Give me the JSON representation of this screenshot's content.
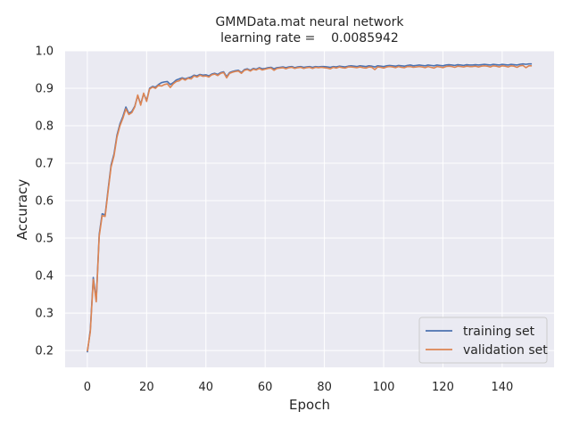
{
  "chart_data": {
    "type": "line",
    "title": "GMMData.mat neural network",
    "subtitle": "learning rate =    0.0085942",
    "xlabel": "Epoch",
    "ylabel": "Accuracy",
    "xlim": [
      -7.5,
      157.5
    ],
    "ylim": [
      0.155,
      1.0
    ],
    "xticks": [
      0,
      20,
      40,
      60,
      80,
      100,
      120,
      140
    ],
    "yticks": [
      0.2,
      0.3,
      0.4,
      0.5,
      0.6,
      0.7,
      0.8,
      0.9,
      1.0
    ],
    "ytick_labels": [
      "0.2",
      "0.3",
      "0.4",
      "0.5",
      "0.6",
      "0.7",
      "0.8",
      "0.9",
      "1.0"
    ],
    "grid": true,
    "legend_position": "lower-right",
    "series": [
      {
        "name": "training set",
        "color": "#4c72b0",
        "points": [
          [
            0,
            0.195
          ],
          [
            1,
            0.255
          ],
          [
            2,
            0.395
          ],
          [
            3,
            0.335
          ],
          [
            4,
            0.51
          ],
          [
            5,
            0.565
          ],
          [
            6,
            0.562
          ],
          [
            7,
            0.63
          ],
          [
            8,
            0.695
          ],
          [
            9,
            0.725
          ],
          [
            10,
            0.775
          ],
          [
            11,
            0.805
          ],
          [
            12,
            0.825
          ],
          [
            13,
            0.85
          ],
          [
            14,
            0.833
          ],
          [
            15,
            0.838
          ],
          [
            16,
            0.852
          ],
          [
            17,
            0.88
          ],
          [
            18,
            0.858
          ],
          [
            19,
            0.885
          ],
          [
            20,
            0.868
          ],
          [
            21,
            0.9
          ],
          [
            22,
            0.905
          ],
          [
            23,
            0.903
          ],
          [
            24,
            0.91
          ],
          [
            25,
            0.915
          ],
          [
            26,
            0.917
          ],
          [
            27,
            0.918
          ],
          [
            28,
            0.91
          ],
          [
            29,
            0.915
          ],
          [
            30,
            0.922
          ],
          [
            31,
            0.925
          ],
          [
            32,
            0.928
          ],
          [
            33,
            0.925
          ],
          [
            34,
            0.928
          ],
          [
            35,
            0.93
          ],
          [
            36,
            0.935
          ],
          [
            37,
            0.933
          ],
          [
            38,
            0.937
          ],
          [
            39,
            0.935
          ],
          [
            40,
            0.936
          ],
          [
            41,
            0.933
          ],
          [
            42,
            0.938
          ],
          [
            43,
            0.94
          ],
          [
            44,
            0.937
          ],
          [
            45,
            0.942
          ],
          [
            46,
            0.944
          ],
          [
            47,
            0.931
          ],
          [
            48,
            0.942
          ],
          [
            49,
            0.945
          ],
          [
            50,
            0.947
          ],
          [
            51,
            0.948
          ],
          [
            52,
            0.942
          ],
          [
            53,
            0.95
          ],
          [
            54,
            0.952
          ],
          [
            55,
            0.948
          ],
          [
            56,
            0.953
          ],
          [
            57,
            0.951
          ],
          [
            58,
            0.955
          ],
          [
            59,
            0.952
          ],
          [
            60,
            0.953
          ],
          [
            61,
            0.955
          ],
          [
            62,
            0.956
          ],
          [
            63,
            0.952
          ],
          [
            64,
            0.955
          ],
          [
            65,
            0.956
          ],
          [
            66,
            0.957
          ],
          [
            67,
            0.955
          ],
          [
            68,
            0.957
          ],
          [
            69,
            0.958
          ],
          [
            70,
            0.955
          ],
          [
            71,
            0.957
          ],
          [
            72,
            0.958
          ],
          [
            73,
            0.956
          ],
          [
            74,
            0.957
          ],
          [
            75,
            0.958
          ],
          [
            76,
            0.956
          ],
          [
            77,
            0.958
          ],
          [
            78,
            0.957
          ],
          [
            79,
            0.958
          ],
          [
            80,
            0.958
          ],
          [
            81,
            0.957
          ],
          [
            82,
            0.956
          ],
          [
            83,
            0.958
          ],
          [
            84,
            0.957
          ],
          [
            85,
            0.959
          ],
          [
            86,
            0.958
          ],
          [
            87,
            0.957
          ],
          [
            88,
            0.959
          ],
          [
            89,
            0.96
          ],
          [
            90,
            0.959
          ],
          [
            91,
            0.958
          ],
          [
            92,
            0.96
          ],
          [
            93,
            0.959
          ],
          [
            94,
            0.958
          ],
          [
            95,
            0.96
          ],
          [
            96,
            0.959
          ],
          [
            97,
            0.957
          ],
          [
            98,
            0.96
          ],
          [
            99,
            0.959
          ],
          [
            100,
            0.958
          ],
          [
            101,
            0.96
          ],
          [
            102,
            0.961
          ],
          [
            103,
            0.96
          ],
          [
            104,
            0.959
          ],
          [
            105,
            0.961
          ],
          [
            106,
            0.96
          ],
          [
            107,
            0.959
          ],
          [
            108,
            0.961
          ],
          [
            109,
            0.962
          ],
          [
            110,
            0.96
          ],
          [
            111,
            0.961
          ],
          [
            112,
            0.962
          ],
          [
            113,
            0.961
          ],
          [
            114,
            0.96
          ],
          [
            115,
            0.962
          ],
          [
            116,
            0.961
          ],
          [
            117,
            0.96
          ],
          [
            118,
            0.962
          ],
          [
            119,
            0.961
          ],
          [
            120,
            0.96
          ],
          [
            121,
            0.962
          ],
          [
            122,
            0.963
          ],
          [
            123,
            0.962
          ],
          [
            124,
            0.961
          ],
          [
            125,
            0.963
          ],
          [
            126,
            0.962
          ],
          [
            127,
            0.961
          ],
          [
            128,
            0.963
          ],
          [
            129,
            0.962
          ],
          [
            130,
            0.962
          ],
          [
            131,
            0.963
          ],
          [
            132,
            0.962
          ],
          [
            133,
            0.963
          ],
          [
            134,
            0.964
          ],
          [
            135,
            0.963
          ],
          [
            136,
            0.962
          ],
          [
            137,
            0.964
          ],
          [
            138,
            0.963
          ],
          [
            139,
            0.962
          ],
          [
            140,
            0.964
          ],
          [
            141,
            0.963
          ],
          [
            142,
            0.962
          ],
          [
            143,
            0.964
          ],
          [
            144,
            0.963
          ],
          [
            145,
            0.962
          ],
          [
            146,
            0.964
          ],
          [
            147,
            0.965
          ],
          [
            148,
            0.964
          ],
          [
            149,
            0.965
          ],
          [
            150,
            0.965
          ]
        ]
      },
      {
        "name": "validation set",
        "color": "#dd8452",
        "points": [
          [
            0,
            0.198
          ],
          [
            1,
            0.25
          ],
          [
            2,
            0.39
          ],
          [
            3,
            0.33
          ],
          [
            4,
            0.505
          ],
          [
            5,
            0.56
          ],
          [
            6,
            0.558
          ],
          [
            7,
            0.625
          ],
          [
            8,
            0.69
          ],
          [
            9,
            0.72
          ],
          [
            10,
            0.77
          ],
          [
            11,
            0.8
          ],
          [
            12,
            0.82
          ],
          [
            13,
            0.845
          ],
          [
            14,
            0.83
          ],
          [
            15,
            0.835
          ],
          [
            16,
            0.85
          ],
          [
            17,
            0.882
          ],
          [
            18,
            0.855
          ],
          [
            19,
            0.887
          ],
          [
            20,
            0.865
          ],
          [
            21,
            0.898
          ],
          [
            22,
            0.903
          ],
          [
            23,
            0.9
          ],
          [
            24,
            0.908
          ],
          [
            25,
            0.906
          ],
          [
            26,
            0.91
          ],
          [
            27,
            0.912
          ],
          [
            28,
            0.902
          ],
          [
            29,
            0.912
          ],
          [
            30,
            0.918
          ],
          [
            31,
            0.92
          ],
          [
            32,
            0.926
          ],
          [
            33,
            0.922
          ],
          [
            34,
            0.927
          ],
          [
            35,
            0.925
          ],
          [
            36,
            0.933
          ],
          [
            37,
            0.93
          ],
          [
            38,
            0.935
          ],
          [
            39,
            0.932
          ],
          [
            40,
            0.933
          ],
          [
            41,
            0.93
          ],
          [
            42,
            0.936
          ],
          [
            43,
            0.938
          ],
          [
            44,
            0.934
          ],
          [
            45,
            0.94
          ],
          [
            46,
            0.942
          ],
          [
            47,
            0.928
          ],
          [
            48,
            0.94
          ],
          [
            49,
            0.943
          ],
          [
            50,
            0.945
          ],
          [
            51,
            0.946
          ],
          [
            52,
            0.94
          ],
          [
            53,
            0.948
          ],
          [
            54,
            0.95
          ],
          [
            55,
            0.946
          ],
          [
            56,
            0.951
          ],
          [
            57,
            0.949
          ],
          [
            58,
            0.953
          ],
          [
            59,
            0.949
          ],
          [
            60,
            0.951
          ],
          [
            61,
            0.953
          ],
          [
            62,
            0.954
          ],
          [
            63,
            0.948
          ],
          [
            64,
            0.953
          ],
          [
            65,
            0.954
          ],
          [
            66,
            0.955
          ],
          [
            67,
            0.952
          ],
          [
            68,
            0.955
          ],
          [
            69,
            0.956
          ],
          [
            70,
            0.953
          ],
          [
            71,
            0.955
          ],
          [
            72,
            0.956
          ],
          [
            73,
            0.953
          ],
          [
            74,
            0.955
          ],
          [
            75,
            0.956
          ],
          [
            76,
            0.953
          ],
          [
            77,
            0.956
          ],
          [
            78,
            0.955
          ],
          [
            79,
            0.956
          ],
          [
            80,
            0.955
          ],
          [
            81,
            0.954
          ],
          [
            82,
            0.952
          ],
          [
            83,
            0.956
          ],
          [
            84,
            0.954
          ],
          [
            85,
            0.957
          ],
          [
            86,
            0.955
          ],
          [
            87,
            0.954
          ],
          [
            88,
            0.957
          ],
          [
            89,
            0.957
          ],
          [
            90,
            0.956
          ],
          [
            91,
            0.955
          ],
          [
            92,
            0.957
          ],
          [
            93,
            0.955
          ],
          [
            94,
            0.954
          ],
          [
            95,
            0.957
          ],
          [
            96,
            0.956
          ],
          [
            97,
            0.95
          ],
          [
            98,
            0.957
          ],
          [
            99,
            0.956
          ],
          [
            100,
            0.954
          ],
          [
            101,
            0.957
          ],
          [
            102,
            0.958
          ],
          [
            103,
            0.957
          ],
          [
            104,
            0.955
          ],
          [
            105,
            0.958
          ],
          [
            106,
            0.956
          ],
          [
            107,
            0.955
          ],
          [
            108,
            0.958
          ],
          [
            109,
            0.958
          ],
          [
            110,
            0.956
          ],
          [
            111,
            0.957
          ],
          [
            112,
            0.958
          ],
          [
            113,
            0.957
          ],
          [
            114,
            0.955
          ],
          [
            115,
            0.958
          ],
          [
            116,
            0.956
          ],
          [
            117,
            0.954
          ],
          [
            118,
            0.958
          ],
          [
            119,
            0.957
          ],
          [
            120,
            0.955
          ],
          [
            121,
            0.958
          ],
          [
            122,
            0.959
          ],
          [
            123,
            0.958
          ],
          [
            124,
            0.956
          ],
          [
            125,
            0.959
          ],
          [
            126,
            0.958
          ],
          [
            127,
            0.957
          ],
          [
            128,
            0.959
          ],
          [
            129,
            0.958
          ],
          [
            130,
            0.958
          ],
          [
            131,
            0.959
          ],
          [
            132,
            0.957
          ],
          [
            133,
            0.959
          ],
          [
            134,
            0.96
          ],
          [
            135,
            0.959
          ],
          [
            136,
            0.957
          ],
          [
            137,
            0.96
          ],
          [
            138,
            0.959
          ],
          [
            139,
            0.957
          ],
          [
            140,
            0.96
          ],
          [
            141,
            0.959
          ],
          [
            142,
            0.957
          ],
          [
            143,
            0.96
          ],
          [
            144,
            0.959
          ],
          [
            145,
            0.956
          ],
          [
            146,
            0.96
          ],
          [
            147,
            0.961
          ],
          [
            148,
            0.955
          ],
          [
            149,
            0.96
          ],
          [
            150,
            0.96
          ]
        ]
      }
    ],
    "colors": {
      "plot_background": "#eaeaf2",
      "grid": "#ffffff",
      "text": "#262626",
      "legend_background": "#eaeaf2",
      "legend_border": "#cccccc"
    }
  }
}
